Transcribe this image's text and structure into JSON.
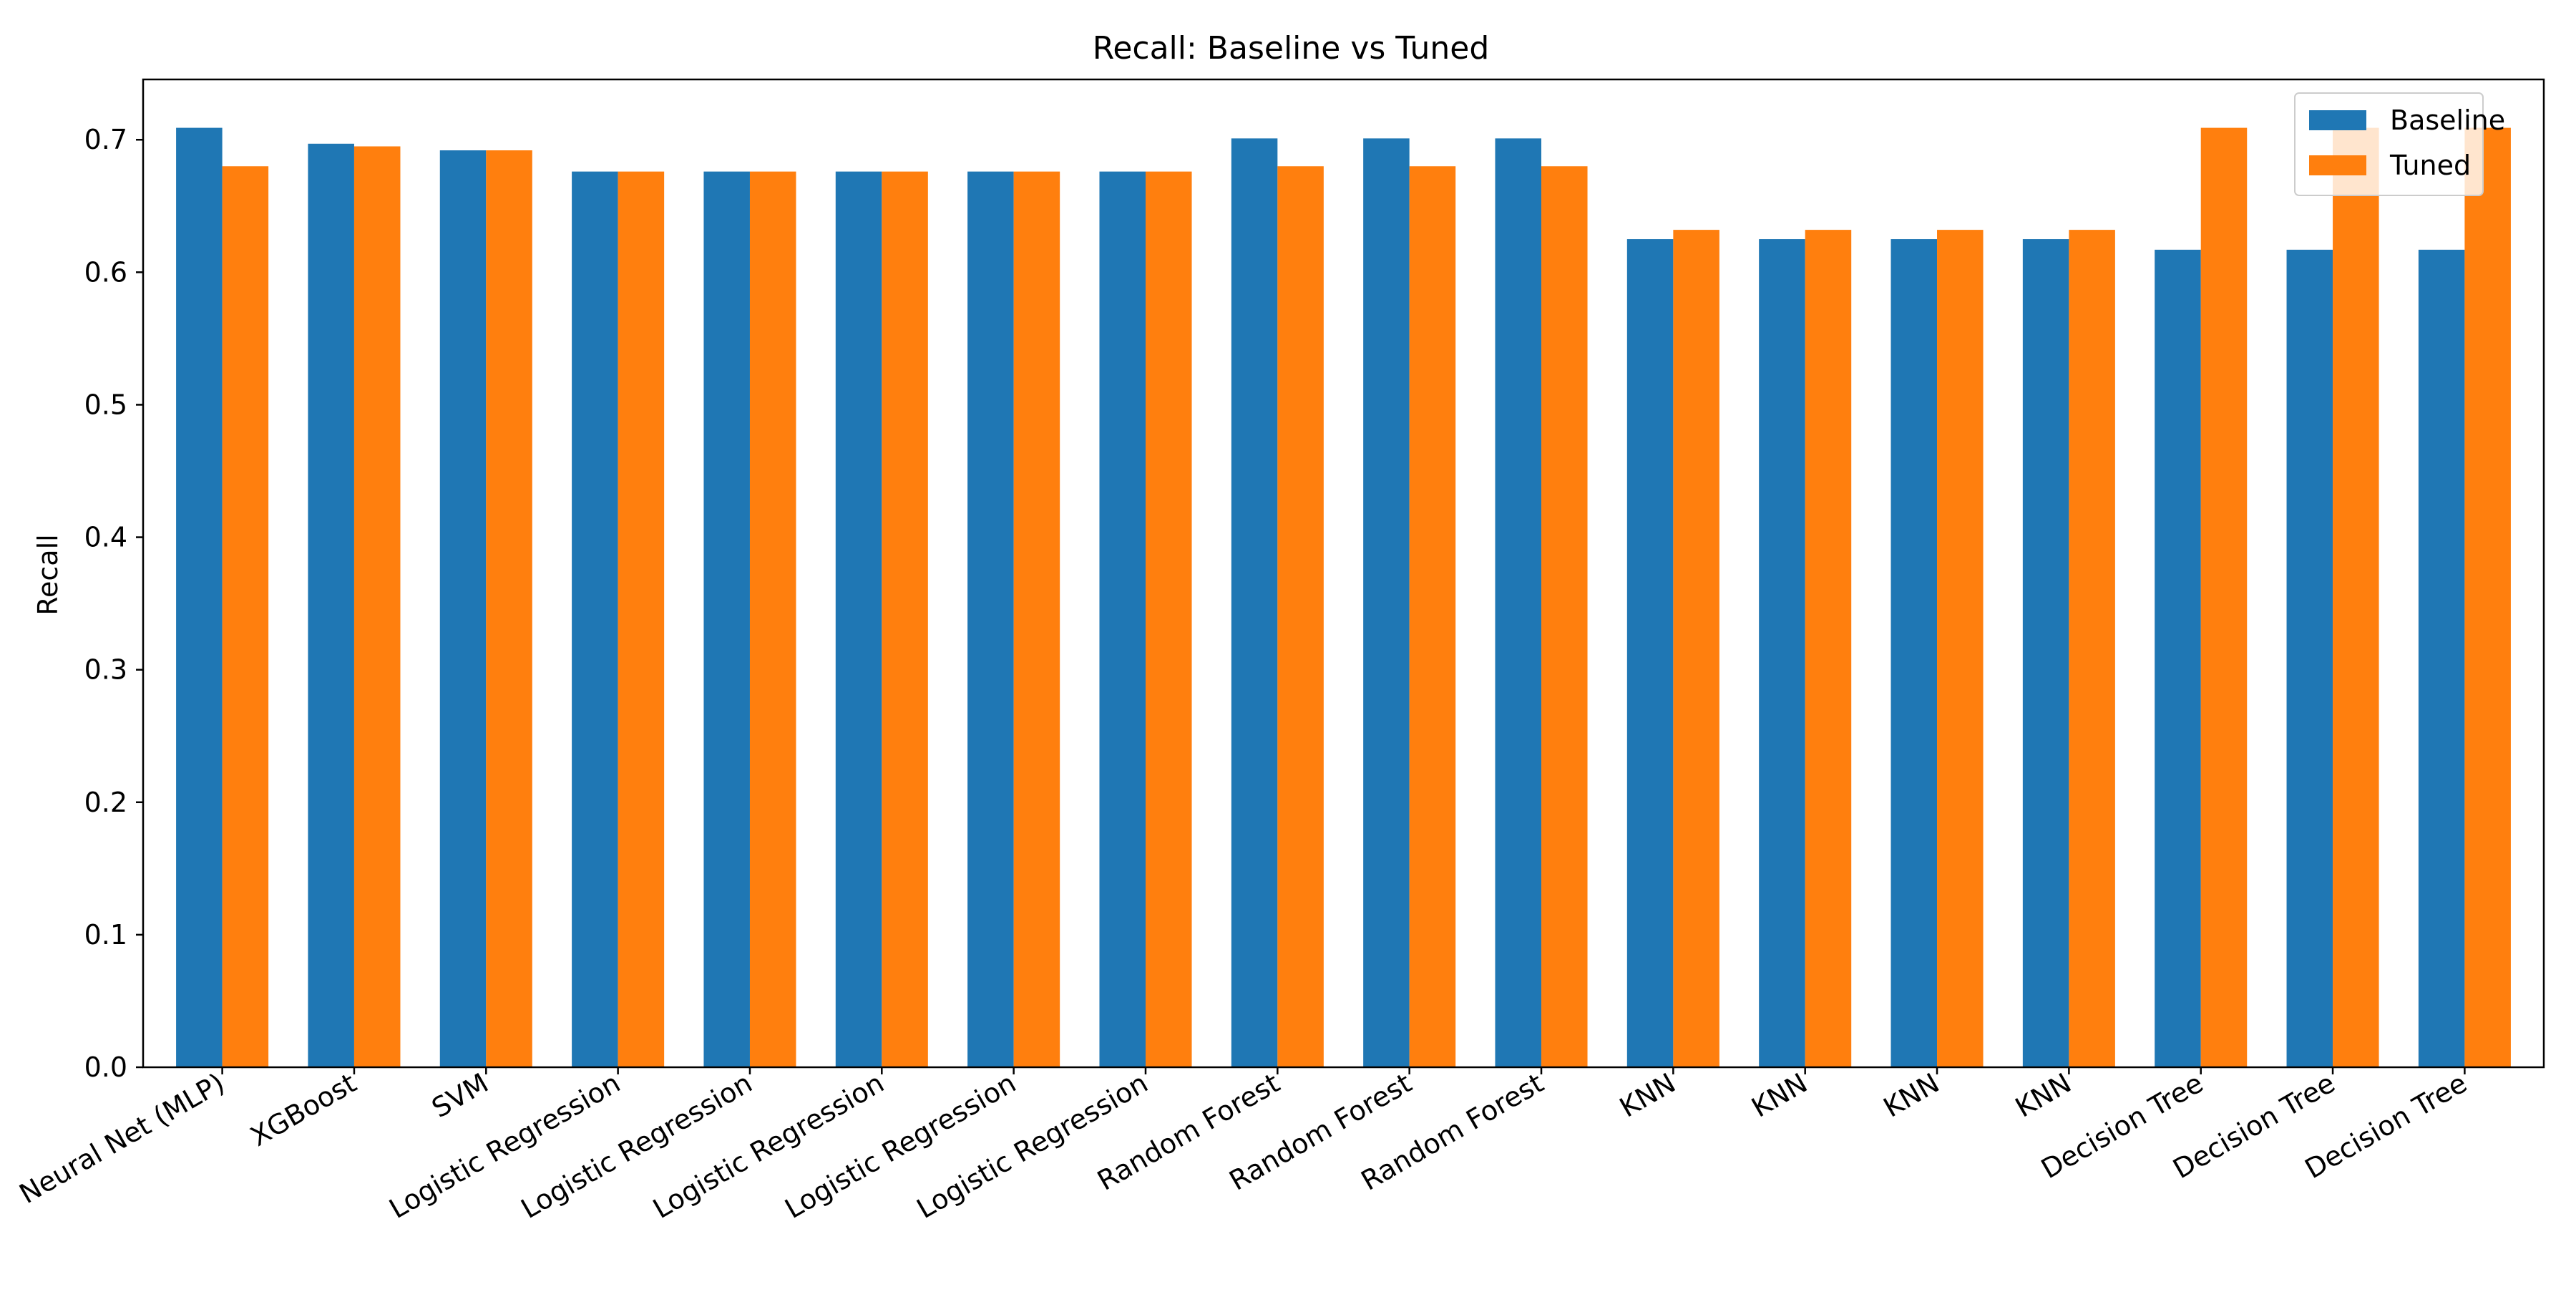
{
  "chart_data": {
    "type": "bar",
    "title": "Recall: Baseline vs Tuned",
    "xlabel": "",
    "ylabel": "Recall",
    "ylim": [
      0,
      0.7455
    ],
    "yticks": [
      0.0,
      0.1,
      0.2,
      0.3,
      0.4,
      0.5,
      0.6,
      0.7
    ],
    "grid": false,
    "legend_position": "upper right",
    "categories": [
      "Neural Net (MLP)",
      "XGBoost",
      "SVM",
      "Logistic Regression",
      "Logistic Regression",
      "Logistic Regression",
      "Logistic Regression",
      "Logistic Regression",
      "Random Forest",
      "Random Forest",
      "Random Forest",
      "KNN",
      "KNN",
      "KNN",
      "KNN",
      "Decision Tree",
      "Decision Tree",
      "Decision Tree"
    ],
    "series": [
      {
        "name": "Baseline",
        "color": "#1f77b4",
        "values": [
          0.709,
          0.697,
          0.692,
          0.676,
          0.676,
          0.676,
          0.676,
          0.676,
          0.701,
          0.701,
          0.701,
          0.625,
          0.625,
          0.625,
          0.625,
          0.617,
          0.617,
          0.617
        ]
      },
      {
        "name": "Tuned",
        "color": "#ff7f0e",
        "values": [
          0.68,
          0.695,
          0.692,
          0.676,
          0.676,
          0.676,
          0.676,
          0.676,
          0.68,
          0.68,
          0.68,
          0.632,
          0.632,
          0.632,
          0.632,
          0.709,
          0.709,
          0.709
        ]
      }
    ]
  }
}
